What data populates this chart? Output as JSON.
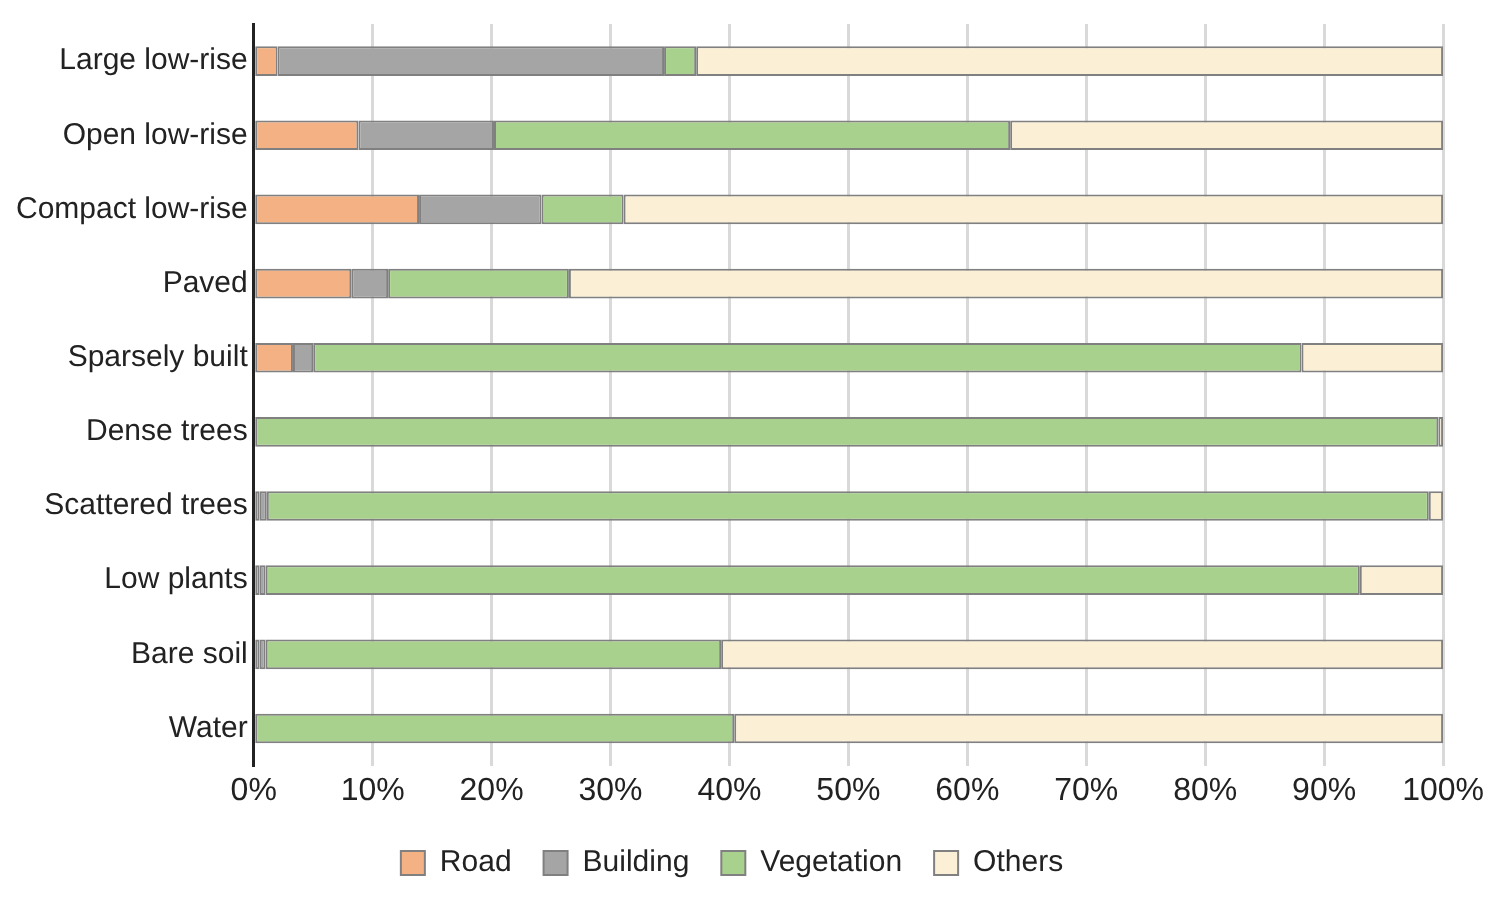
{
  "chart_data": {
    "type": "bar",
    "orientation": "horizontal",
    "stacked": true,
    "categories": [
      "Large low-rise",
      "Open low-rise",
      "Compact low-rise",
      "Paved",
      "Sparsely built",
      "Dense trees",
      "Scattered trees",
      "Low plants",
      "Bare soil",
      "Water"
    ],
    "series": [
      {
        "name": "Road",
        "color": "#f4b183",
        "values": [
          2.0,
          8.8,
          13.9,
          8.2,
          3.3,
          0,
          0.5,
          0.5,
          0.5,
          0
        ]
      },
      {
        "name": "Building",
        "color": "#a5a5a5",
        "values": [
          32.5,
          11.4,
          10.3,
          3.1,
          1.7,
          null,
          0.6,
          0.5,
          0.5,
          null
        ]
      },
      {
        "name": "Vegetation",
        "color": "#a9d18e",
        "values": [
          2.7,
          43.4,
          6.9,
          15.2,
          83.1,
          99.6,
          97.7,
          92.0,
          38.3,
          40.4
        ]
      },
      {
        "name": "Others",
        "color": "#fbf0d6",
        "values": [
          62.8,
          36.4,
          68.9,
          73.5,
          11.9,
          0.4,
          1.2,
          7.0,
          60.7,
          59.6
        ]
      }
    ],
    "xlim": [
      0,
      100
    ],
    "xticks": [
      {
        "value": 0,
        "label": "0%"
      },
      {
        "value": 10,
        "label": "10%"
      },
      {
        "value": 20,
        "label": "20%"
      },
      {
        "value": 30,
        "label": "30%"
      },
      {
        "value": 40,
        "label": "40%"
      },
      {
        "value": 50,
        "label": "50%"
      },
      {
        "value": 60,
        "label": "60%"
      },
      {
        "value": 70,
        "label": "70%"
      },
      {
        "value": 80,
        "label": "80%"
      },
      {
        "value": 90,
        "label": "90%"
      },
      {
        "value": 100,
        "label": "100%"
      }
    ],
    "grid": "x",
    "legend": "bottom"
  }
}
